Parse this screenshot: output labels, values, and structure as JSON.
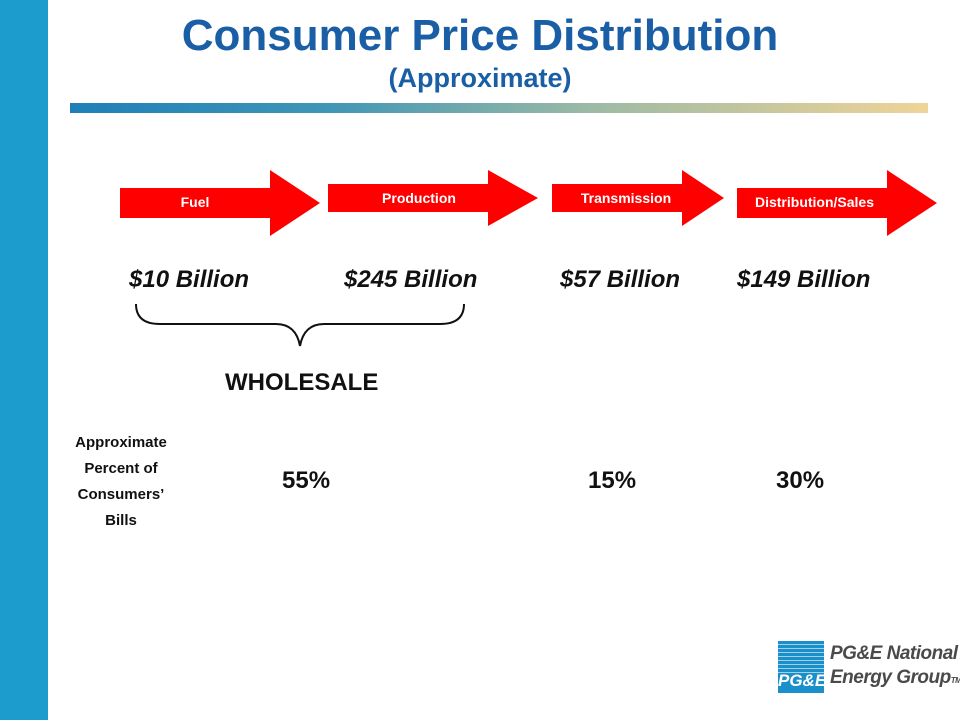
{
  "title": "Consumer Price Distribution",
  "subtitle": "(Approximate)",
  "stages": [
    {
      "label": "Fuel",
      "amount": "$10 Billion"
    },
    {
      "label": "Production",
      "amount": "$245 Billion"
    },
    {
      "label": "Transmission",
      "amount": "$57 Billion"
    },
    {
      "label": "Distribution/Sales",
      "amount": "$149 Billion"
    }
  ],
  "wholesale_label": "WHOLESALE",
  "percent_row": {
    "label_lines": [
      "Approximate",
      "Percent of",
      "Consumers’",
      "Bills"
    ],
    "values": [
      "55%",
      "15%",
      "30%"
    ]
  },
  "logo": {
    "mark_text": "PG&E",
    "line1": "PG&E National",
    "line2": "Energy Group",
    "tm": "TM"
  },
  "colors": {
    "arrow": "#ff0000",
    "title": "#1a5fa6",
    "sidebar": "#1b9ccd"
  }
}
